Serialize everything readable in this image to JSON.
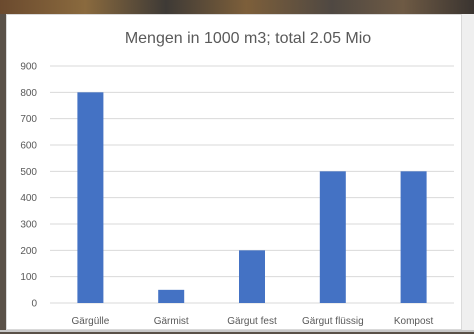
{
  "chart_data": {
    "type": "bar",
    "title": "Mengen in 1000 m3; total 2.05 Mio",
    "xlabel": "",
    "ylabel": "",
    "categories": [
      "Gärgülle",
      "Gärmist",
      "Gärgut fest",
      "Gärgut flüssig",
      "Kompost"
    ],
    "values": [
      800,
      50,
      200,
      500,
      500
    ],
    "ylim": [
      0,
      900
    ],
    "yticks": [
      "0",
      "100",
      "200",
      "300",
      "400",
      "500",
      "600",
      "700",
      "800",
      "900"
    ],
    "grid": true,
    "legend": "none",
    "bar_color": "#4472c4",
    "grid_color": "#d9d9d9",
    "text_color": "#595959"
  }
}
